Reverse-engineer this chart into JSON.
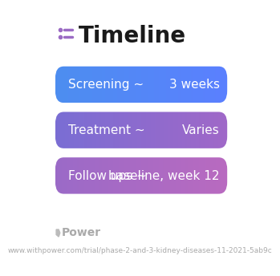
{
  "title": "Timeline",
  "background_color": "#ffffff",
  "rows": [
    {
      "label": "Screening ~",
      "value": "3 weeks",
      "color_left": "#4d8ef0",
      "color_right": "#5b80ff"
    },
    {
      "label": "Treatment ~",
      "value": "Varies",
      "color_left": "#7a6ed4",
      "color_right": "#a068c8"
    },
    {
      "label": "Follow ups ~",
      "value": "baseline, week 12",
      "color_left": "#9b6bc8",
      "color_right": "#b96ac0"
    }
  ],
  "footer_logo": "Power",
  "footer_url": "www.withpower.com/trial/phase-2-and-3-kidney-diseases-11-2021-5ab9c",
  "icon_color": "#9b6bc4",
  "title_fontsize": 20,
  "label_fontsize": 11,
  "footer_fontsize": 6.5
}
